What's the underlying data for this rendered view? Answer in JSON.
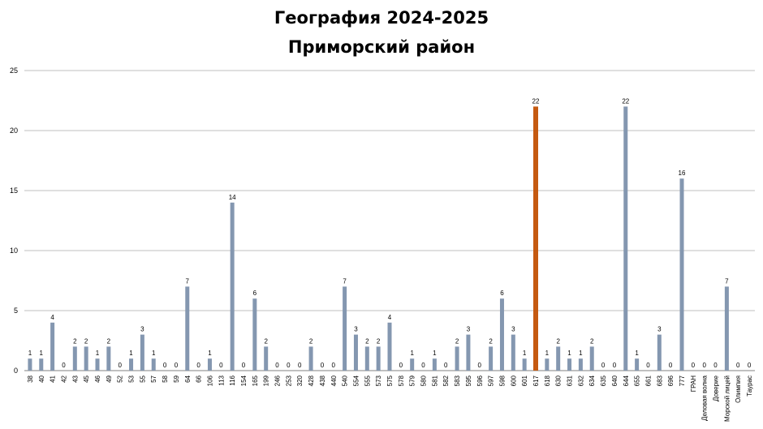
{
  "chart_data": {
    "type": "bar",
    "title": "География 2024-2025",
    "subtitle": "Приморский район",
    "xlabel": "",
    "ylabel": "",
    "ylim": [
      0,
      25
    ],
    "yticks": [
      0,
      5,
      10,
      15,
      20,
      25
    ],
    "grid": true,
    "legend": "none",
    "colors": {
      "default": "#8497B0",
      "highlight": "#C55A11"
    },
    "highlight_category": "617",
    "categories": [
      "38",
      "40",
      "41",
      "42",
      "43",
      "45",
      "46",
      "49",
      "52",
      "53",
      "55",
      "57",
      "58",
      "59",
      "64",
      "66",
      "106",
      "113",
      "116",
      "154",
      "165",
      "199",
      "246",
      "253",
      "320",
      "428",
      "438",
      "440",
      "540",
      "554",
      "555",
      "573",
      "575",
      "578",
      "579",
      "580",
      "581",
      "582",
      "583",
      "595",
      "596",
      "597",
      "598",
      "600",
      "601",
      "617",
      "618",
      "630",
      "631",
      "632",
      "634",
      "635",
      "640",
      "644",
      "655",
      "661",
      "683",
      "696",
      "777",
      "ГРАН",
      "Деловая волна",
      "Доверие",
      "Морской лицей",
      "Олимпия",
      "Таурас"
    ],
    "values": [
      1,
      1,
      4,
      0,
      2,
      2,
      1,
      2,
      0,
      1,
      3,
      1,
      0,
      0,
      7,
      0,
      1,
      0,
      14,
      0,
      6,
      2,
      0,
      0,
      0,
      2,
      0,
      0,
      7,
      3,
      2,
      2,
      4,
      0,
      1,
      0,
      1,
      0,
      2,
      3,
      0,
      2,
      6,
      3,
      1,
      22,
      1,
      2,
      1,
      1,
      2,
      0,
      0,
      22,
      1,
      0,
      3,
      0,
      16,
      0,
      0,
      0,
      7,
      0,
      0
    ]
  }
}
